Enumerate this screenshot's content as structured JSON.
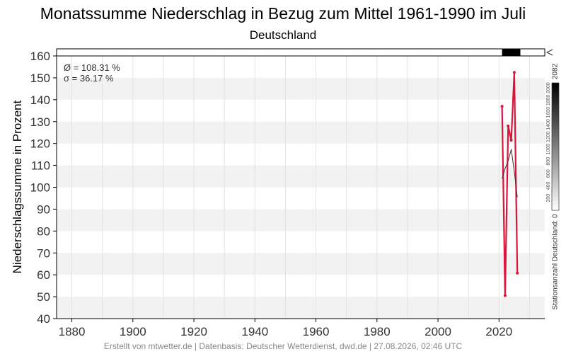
{
  "title": "Monatssumme Niederschlag in Bezug zum Mittel 1961-1990 im Juli",
  "subtitle": "Deutschland",
  "footer": "Erstellt von mtwetter.de | Datenbasis: Deutscher Wetterdienst, dwd.de | 27.08.2026, 02:46 UTC",
  "stats": {
    "mean": "Ø = 108.31 %",
    "sigma": "σ = 36.17 %"
  },
  "station_scale": {
    "label": "Stationsanzahl Deutschland: 0",
    "max_label": "2082",
    "ticks": [
      "200",
      "400",
      "600",
      "800",
      "1000",
      "1200",
      "1400",
      "1600",
      "1800",
      "2000"
    ]
  },
  "colors": {
    "series": "#dc143c",
    "mean_line": "#333333",
    "band": "#f2f2f2",
    "grid": "#e2e2e2"
  },
  "chart_data": {
    "type": "line",
    "title": "Monatssumme Niederschlag in Bezug zum Mittel 1961-1990 im Juli",
    "subtitle": "Deutschland",
    "xlabel": "",
    "ylabel": "Niederschlagssumme in Prozent",
    "xlim": [
      1875,
      2035
    ],
    "ylim": [
      40,
      160
    ],
    "xticks": [
      1880,
      1900,
      1920,
      1940,
      1960,
      1980,
      2000,
      2020
    ],
    "yticks": [
      40,
      50,
      60,
      70,
      80,
      90,
      100,
      110,
      120,
      130,
      140,
      150,
      160
    ],
    "grid": true,
    "series": [
      {
        "x": [
          2021,
          2022,
          2023,
          2024,
          2025,
          2026
        ],
        "values": [
          137.0,
          50.5,
          128.0,
          121.5,
          152.5,
          60.8
        ]
      },
      {
        "x": [
          2021,
          2022,
          2023,
          2024,
          2025,
          2026
        ],
        "values": [
          103.9,
          108.5,
          112.1,
          117.3,
          107.3,
          95.4
        ]
      }
    ],
    "station_bar": {
      "x": [
        2021,
        2027
      ],
      "level": 1.0
    }
  }
}
